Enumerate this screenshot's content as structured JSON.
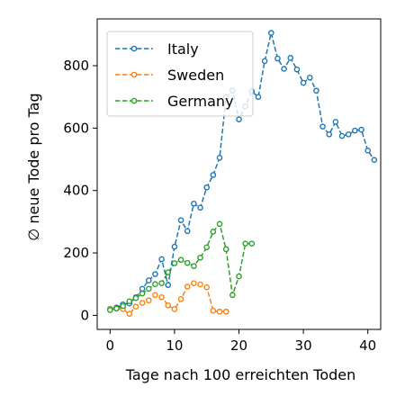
{
  "chart_data": {
    "type": "line",
    "title": "",
    "xlabel": "Tage nach 100 erreichten Toden",
    "ylabel": "∅ neue Tode pro Tag",
    "xlim": [
      -2,
      42
    ],
    "ylim": [
      -45,
      950
    ],
    "xticks": [
      0,
      10,
      20,
      30,
      40
    ],
    "yticks": [
      0,
      200,
      400,
      600,
      800
    ],
    "grid": false,
    "legend_position": "top-left",
    "line_style": "dashed",
    "marker": "open-circle",
    "series": [
      {
        "name": "Italy",
        "color": "#1f77b4",
        "x": [
          0,
          1,
          2,
          3,
          4,
          5,
          6,
          7,
          8,
          9,
          10,
          11,
          12,
          13,
          14,
          15,
          16,
          17,
          18,
          19,
          20,
          21,
          22,
          23,
          24,
          25,
          26,
          27,
          28,
          29,
          30,
          31,
          32,
          33,
          34,
          35,
          36,
          37,
          38,
          39,
          40,
          41
        ],
        "y": [
          21,
          25,
          35,
          38,
          58,
          85,
          112,
          132,
          180,
          97,
          220,
          305,
          270,
          358,
          345,
          410,
          450,
          505,
          700,
          720,
          628,
          670,
          718,
          700,
          815,
          905,
          823,
          790,
          825,
          788,
          745,
          762,
          720,
          605,
          580,
          620,
          575,
          580,
          592,
          595,
          528,
          498
        ]
      },
      {
        "name": "Sweden",
        "color": "#ff7f0e",
        "x": [
          0,
          1,
          2,
          3,
          4,
          5,
          6,
          7,
          8,
          9,
          10,
          11,
          12,
          13,
          14,
          15,
          16,
          17,
          18
        ],
        "y": [
          20,
          22,
          20,
          5,
          28,
          40,
          48,
          65,
          58,
          32,
          20,
          52,
          92,
          103,
          99,
          90,
          15,
          12,
          12
        ]
      },
      {
        "name": "Germany",
        "color": "#2ca02c",
        "x": [
          0,
          1,
          2,
          3,
          4,
          5,
          6,
          7,
          8,
          9,
          10,
          11,
          12,
          13,
          14,
          15,
          16,
          17,
          18,
          19,
          20,
          21,
          22
        ],
        "y": [
          17,
          22,
          30,
          45,
          55,
          70,
          85,
          100,
          103,
          138,
          167,
          178,
          168,
          158,
          185,
          218,
          268,
          293,
          212,
          65,
          125,
          230,
          230
        ]
      }
    ]
  }
}
